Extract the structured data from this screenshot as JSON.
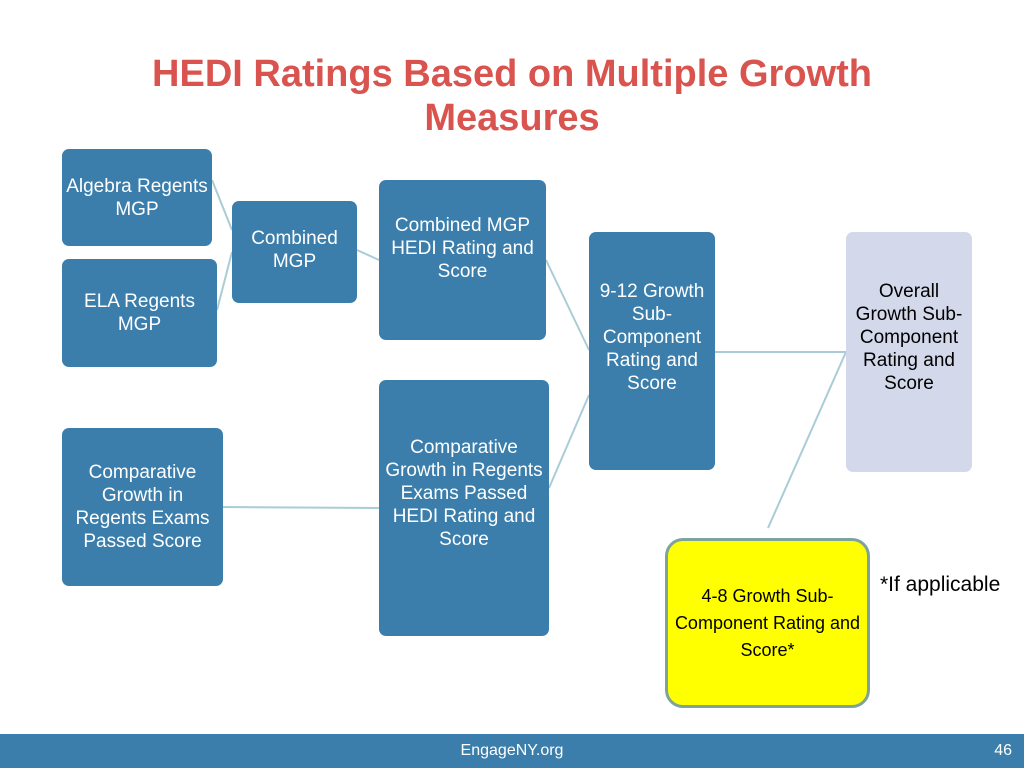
{
  "slide": {
    "title": "HEDI Ratings Based on Multiple Growth Measures"
  },
  "boxes": {
    "algebra": "Algebra Regents MGP",
    "ela": "ELA Regents MGP",
    "combined_mgp": "Combined MGP",
    "combined_hedi": "Combined MGP HEDI Rating and Score",
    "comparative_passed_score": "Comparative Growth in Regents Exams Passed Score",
    "comparative_hedi": "Comparative Growth in Regents Exams Passed HEDI Rating and Score",
    "growth_9_12": "9-12 Growth Sub-Component Rating and Score",
    "overall": "Overall Growth Sub-Component Rating and Score",
    "growth_4_8": "4-8 Growth Sub-Component Rating and Score*"
  },
  "note": "*If applicable",
  "footer": {
    "site": "EngageNY.org",
    "page": "46"
  },
  "colors": {
    "title": "#d9534f",
    "box_fill": "#3b7eab",
    "overall_fill": "#d3d9ea",
    "optional_fill": "#ffff00",
    "connector": "#a9cdd6"
  }
}
